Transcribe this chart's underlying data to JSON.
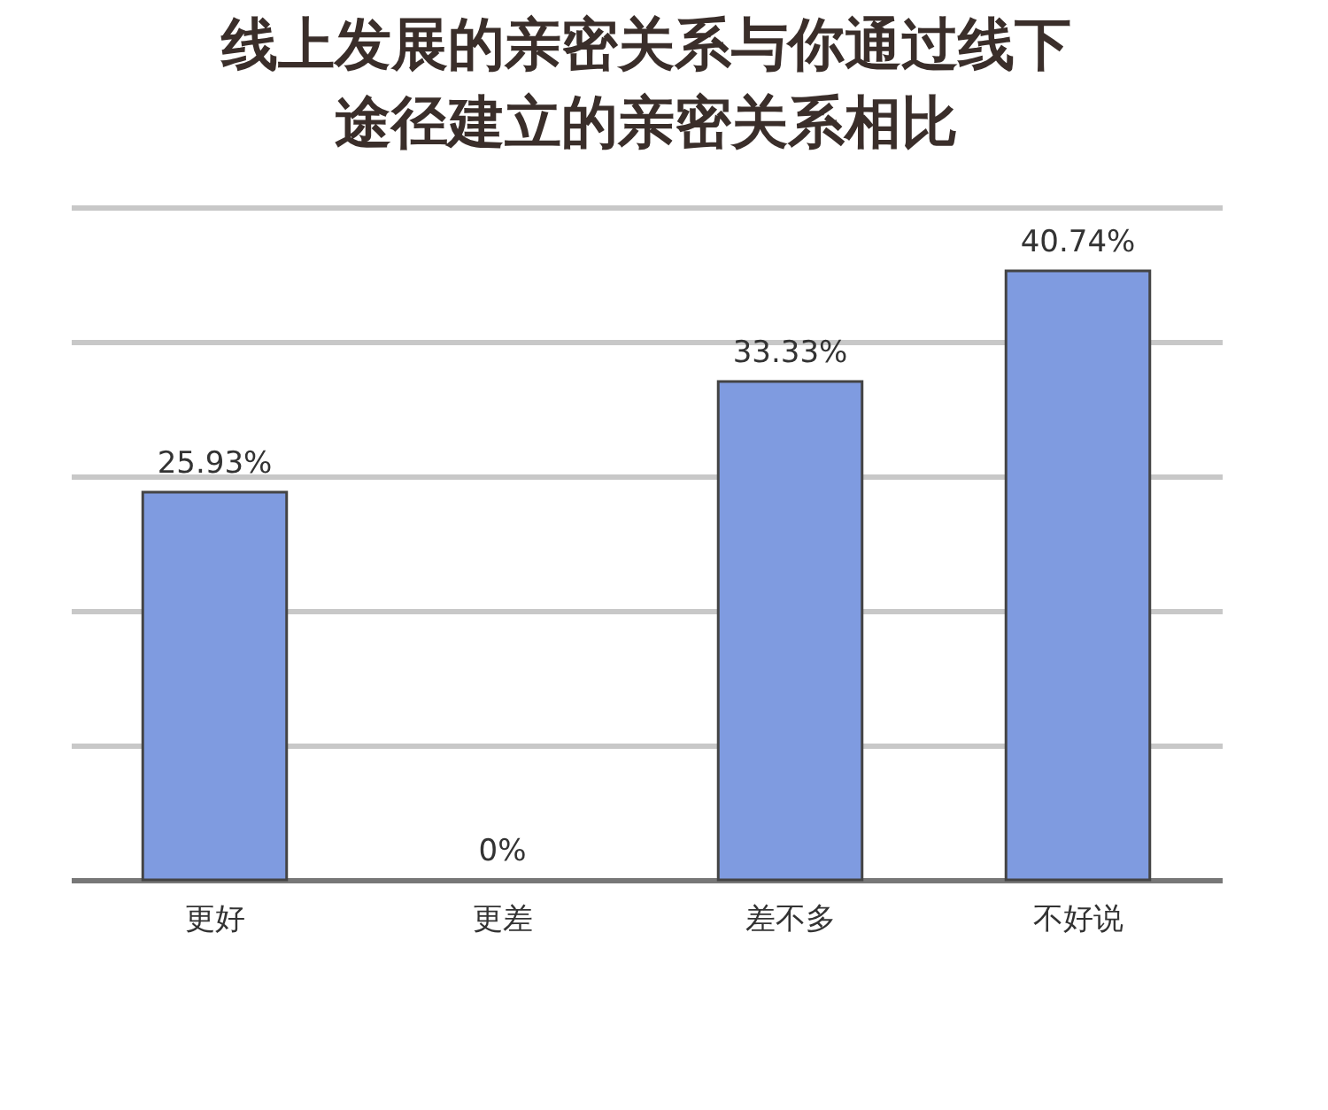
{
  "chart_data": {
    "type": "bar",
    "title": "线上发展的亲密关系与你通过线下途径建立的亲密关系相比",
    "categories": [
      "更好",
      "更差",
      "差不多",
      "不好说"
    ],
    "values": [
      25.93,
      0,
      33.33,
      40.74
    ],
    "value_labels": [
      "25.93%",
      "0%",
      "33.33%",
      "40.74%"
    ],
    "color": "#7f9be0",
    "ylim": [
      0,
      45
    ],
    "yticks": [
      {
        "value": 0,
        "label": null
      },
      {
        "value": 9,
        "label": null
      },
      {
        "value": 18,
        "label": null
      },
      {
        "value": 27,
        "label": null
      },
      {
        "value": 36,
        "label": null
      },
      {
        "value": 45,
        "label": null
      }
    ],
    "grid": "y",
    "tick_labels": "x"
  }
}
